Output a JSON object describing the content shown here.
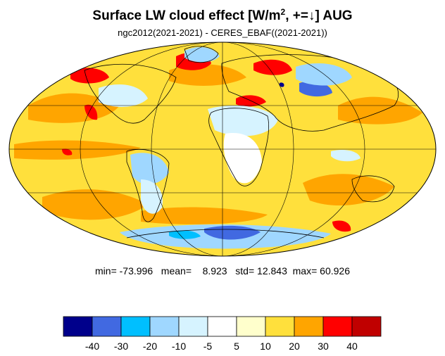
{
  "title": {
    "prefix": "Surface LW cloud effect [W/m",
    "superscript": "2",
    "middle": ", +=",
    "arrow": "↓",
    "suffix": "]  AUG"
  },
  "subtitle": "ngc2012(2021-2021) - CERES_EBAF((2021-2021))",
  "stats": {
    "min_label": "min=",
    "min": "-73.996",
    "mean_label": "mean=",
    "mean": "8.923",
    "std_label": "std=",
    "std": "12.843",
    "max_label": "max=",
    "max": "60.926"
  },
  "map": {
    "projection": "Mollweide",
    "ocean_base_color": "#FFE03C",
    "coastline_color": "#000000",
    "gridline_color": "#000000",
    "anomaly_regions": [
      {
        "name": "north-atlantic-high",
        "level": 40,
        "color": "#FF0000"
      },
      {
        "name": "mediterranean-high",
        "level": 40,
        "color": "#FF0000"
      },
      {
        "name": "central-asia-low",
        "level": -20,
        "color": "#00BFFF"
      },
      {
        "name": "greenland-low",
        "level": -10,
        "color": "#9FD7FF"
      },
      {
        "name": "sahara-low",
        "level": -5,
        "color": "#D6F3FF"
      },
      {
        "name": "amazon-low",
        "level": -10,
        "color": "#9FD7FF"
      },
      {
        "name": "antarctica-low",
        "level": -30,
        "color": "#4169E1"
      },
      {
        "name": "east-pacific-high",
        "level": 30,
        "color": "#FFA500"
      },
      {
        "name": "north-pacific-high",
        "level": 40,
        "color": "#FF0000"
      }
    ]
  },
  "colorbar": {
    "colors": [
      "#00008B",
      "#4169E1",
      "#00BFFF",
      "#9FD7FF",
      "#D6F3FF",
      "#FFFFFF",
      "#FFFFCC",
      "#FFE03C",
      "#FFA500",
      "#FF0000",
      "#C00000"
    ],
    "tick_labels": [
      "-40",
      "-30",
      "-20",
      "-10",
      "-5",
      "5",
      "10",
      "20",
      "30",
      "40"
    ]
  }
}
